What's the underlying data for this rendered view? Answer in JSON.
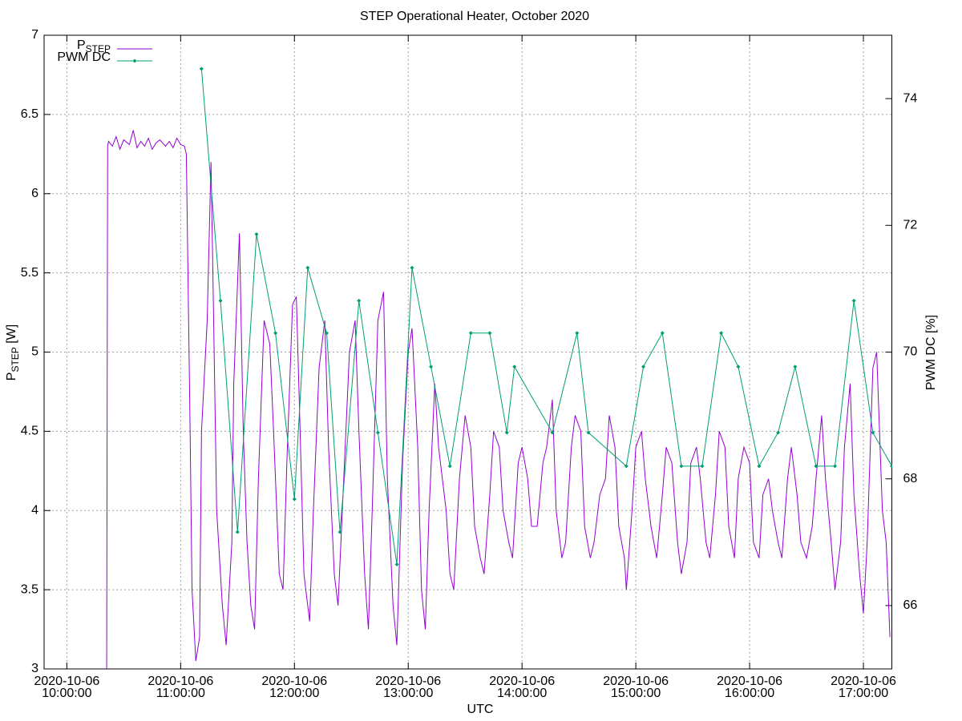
{
  "chart_data": {
    "type": "line",
    "title": "STEP Operational Heater, October 2020",
    "xlabel": "UTC",
    "ylabel": "PSTEP [W]",
    "y2label": "PWM DC [%]",
    "xlim": [
      "2020-10-06 09:48:00",
      "2020-10-06 17:15:00"
    ],
    "xticks": [
      "2020-10-06 10:00:00",
      "2020-10-06 11:00:00",
      "2020-10-06 12:00:00",
      "2020-10-06 13:00:00",
      "2020-10-06 14:00:00",
      "2020-10-06 15:00:00",
      "2020-10-06 16:00:00",
      "2020-10-06 17:00:00"
    ],
    "ylim": [
      3,
      7
    ],
    "yticks": [
      3,
      3.5,
      4,
      4.5,
      5,
      5.5,
      6,
      6.5,
      7
    ],
    "y2lim": [
      65,
      75
    ],
    "y2ticks": [
      66,
      68,
      70,
      72,
      74
    ],
    "grid": true,
    "legend": "top-left",
    "series": [
      {
        "name": "PSTEP",
        "color": "#9400d3",
        "markers": false,
        "x": [
          "2020-10-06 10:21:00",
          "2020-10-06 10:21:30",
          "2020-10-06 10:22:00",
          "2020-10-06 10:24:00",
          "2020-10-06 10:26:00",
          "2020-10-06 10:28:00",
          "2020-10-06 10:30:00",
          "2020-10-06 10:33:00",
          "2020-10-06 10:35:00",
          "2020-10-06 10:37:00",
          "2020-10-06 10:39:00",
          "2020-10-06 10:41:00",
          "2020-10-06 10:43:00",
          "2020-10-06 10:45:00",
          "2020-10-06 10:47:00",
          "2020-10-06 10:49:00",
          "2020-10-06 10:52:00",
          "2020-10-06 10:54:00",
          "2020-10-06 10:56:00",
          "2020-10-06 10:58:00",
          "2020-10-06 11:00:00",
          "2020-10-06 11:02:00",
          "2020-10-06 11:03:00",
          "2020-10-06 11:05:00",
          "2020-10-06 11:06:00",
          "2020-10-06 11:08:00",
          "2020-10-06 11:10:00",
          "2020-10-06 11:11:00",
          "2020-10-06 11:14:00",
          "2020-10-06 11:16:00",
          "2020-10-06 11:17:00",
          "2020-10-06 11:19:00",
          "2020-10-06 11:22:00",
          "2020-10-06 11:24:00",
          "2020-10-06 11:27:00",
          "2020-10-06 11:28:00",
          "2020-10-06 11:31:00",
          "2020-10-06 11:33:00",
          "2020-10-06 11:35:00",
          "2020-10-06 11:37:00",
          "2020-10-06 11:39:00",
          "2020-10-06 11:41:00",
          "2020-10-06 11:44:00",
          "2020-10-06 11:47:00",
          "2020-10-06 11:49:00",
          "2020-10-06 11:52:00",
          "2020-10-06 11:54:00",
          "2020-10-06 11:56:00",
          "2020-10-06 11:59:00",
          "2020-10-06 12:01:00",
          "2020-10-06 12:03:00",
          "2020-10-06 12:05:00",
          "2020-10-06 12:08:00",
          "2020-10-06 12:10:00",
          "2020-10-06 12:13:00",
          "2020-10-06 12:16:00",
          "2020-10-06 12:18:00",
          "2020-10-06 12:21:00",
          "2020-10-06 12:23:00",
          "2020-10-06 12:26:00",
          "2020-10-06 12:29:00",
          "2020-10-06 12:32:00",
          "2020-10-06 12:34:00",
          "2020-10-06 12:37:00",
          "2020-10-06 12:39:00",
          "2020-10-06 12:41:00",
          "2020-10-06 12:44:00",
          "2020-10-06 12:47:00",
          "2020-10-06 12:49:00",
          "2020-10-06 12:52:00",
          "2020-10-06 12:54:00",
          "2020-10-06 12:57:00",
          "2020-10-06 13:00:00",
          "2020-10-06 13:02:00",
          "2020-10-06 13:05:00",
          "2020-10-06 13:07:00",
          "2020-10-06 13:09:00",
          "2020-10-06 13:11:00",
          "2020-10-06 13:14:00",
          "2020-10-06 13:16:00",
          "2020-10-06 13:20:00",
          "2020-10-06 13:22:00",
          "2020-10-06 13:24:00",
          "2020-10-06 13:27:00",
          "2020-10-06 13:30:00",
          "2020-10-06 13:33:00",
          "2020-10-06 13:35:00",
          "2020-10-06 13:38:00",
          "2020-10-06 13:40:00",
          "2020-10-06 13:43:00",
          "2020-10-06 13:45:00",
          "2020-10-06 13:48:00",
          "2020-10-06 13:50:00",
          "2020-10-06 13:53:00",
          "2020-10-06 13:55:00",
          "2020-10-06 13:58:00",
          "2020-10-06 14:00:00",
          "2020-10-06 14:03:00",
          "2020-10-06 14:05:00",
          "2020-10-06 14:08:00",
          "2020-10-06 14:11:00",
          "2020-10-06 14:13:00",
          "2020-10-06 14:16:00",
          "2020-10-06 14:18:00",
          "2020-10-06 14:21:00",
          "2020-10-06 14:23:00",
          "2020-10-06 14:26:00",
          "2020-10-06 14:28:00",
          "2020-10-06 14:31:00",
          "2020-10-06 14:33:00",
          "2020-10-06 14:36:00",
          "2020-10-06 14:38:00",
          "2020-10-06 14:41:00",
          "2020-10-06 14:44:00",
          "2020-10-06 14:46:00",
          "2020-10-06 14:49:00",
          "2020-10-06 14:51:00",
          "2020-10-06 14:54:00",
          "2020-10-06 14:55:00",
          "2020-10-06 14:58:00",
          "2020-10-06 15:00:00",
          "2020-10-06 15:03:00",
          "2020-10-06 15:05:00",
          "2020-10-06 15:08:00",
          "2020-10-06 15:11:00",
          "2020-10-06 15:14:00",
          "2020-10-06 15:16:00",
          "2020-10-06 15:19:00",
          "2020-10-06 15:22:00",
          "2020-10-06 15:24:00",
          "2020-10-06 15:27:00",
          "2020-10-06 15:29:00",
          "2020-10-06 15:32:00",
          "2020-10-06 15:34:00",
          "2020-10-06 15:37:00",
          "2020-10-06 15:39:00",
          "2020-10-06 15:42:00",
          "2020-10-06 15:44:00",
          "2020-10-06 15:47:00",
          "2020-10-06 15:49:00",
          "2020-10-06 15:52:00",
          "2020-10-06 15:54:00",
          "2020-10-06 15:57:00",
          "2020-10-06 16:00:00",
          "2020-10-06 16:02:00",
          "2020-10-06 16:05:00",
          "2020-10-06 16:07:00",
          "2020-10-06 16:10:00",
          "2020-10-06 16:12:00",
          "2020-10-06 16:15:00",
          "2020-10-06 16:17:00",
          "2020-10-06 16:20:00",
          "2020-10-06 16:22:00",
          "2020-10-06 16:25:00",
          "2020-10-06 16:27:00",
          "2020-10-06 16:30:00",
          "2020-10-06 16:33:00",
          "2020-10-06 16:35:00",
          "2020-10-06 16:38:00",
          "2020-10-06 16:40:00",
          "2020-10-06 16:43:00",
          "2020-10-06 16:45:00",
          "2020-10-06 16:48:00",
          "2020-10-06 16:50:00",
          "2020-10-06 16:53:00",
          "2020-10-06 16:55:00",
          "2020-10-06 16:58:00",
          "2020-10-06 17:00:00",
          "2020-10-06 17:02:00",
          "2020-10-06 17:05:00",
          "2020-10-06 17:07:00",
          "2020-10-06 17:10:00",
          "2020-10-06 17:12:00",
          "2020-10-06 17:14:00"
        ],
        "values": [
          3.0,
          6.3,
          6.33,
          6.3,
          6.36,
          6.28,
          6.34,
          6.31,
          6.4,
          6.29,
          6.33,
          6.3,
          6.35,
          6.28,
          6.32,
          6.34,
          6.3,
          6.33,
          6.29,
          6.35,
          6.31,
          6.3,
          6.25,
          4.5,
          3.5,
          3.05,
          3.2,
          4.5,
          5.2,
          6.2,
          5.5,
          4.0,
          3.4,
          3.15,
          3.8,
          4.8,
          5.75,
          4.5,
          3.8,
          3.4,
          3.25,
          4.2,
          5.2,
          5.05,
          4.5,
          3.6,
          3.5,
          4.3,
          5.3,
          5.35,
          4.5,
          3.6,
          3.3,
          4.0,
          4.9,
          5.2,
          4.4,
          3.6,
          3.4,
          4.2,
          5.0,
          5.2,
          4.5,
          3.6,
          3.25,
          4.0,
          5.2,
          5.38,
          4.2,
          3.4,
          3.15,
          4.3,
          5.0,
          5.15,
          4.4,
          3.5,
          3.25,
          4.0,
          4.8,
          4.4,
          4.0,
          3.6,
          3.5,
          4.2,
          4.6,
          4.4,
          3.9,
          3.7,
          3.6,
          4.1,
          4.5,
          4.4,
          4.0,
          3.8,
          3.7,
          4.3,
          4.4,
          4.2,
          3.9,
          3.9,
          4.3,
          4.4,
          4.7,
          4.0,
          3.7,
          3.8,
          4.4,
          4.6,
          4.5,
          3.9,
          3.7,
          3.8,
          4.1,
          4.2,
          4.6,
          4.4,
          3.9,
          3.7,
          3.5,
          4.0,
          4.4,
          4.5,
          4.2,
          3.9,
          3.7,
          4.1,
          4.4,
          4.3,
          3.8,
          3.6,
          3.8,
          4.3,
          4.4,
          4.2,
          3.8,
          3.7,
          4.1,
          4.5,
          4.4,
          3.9,
          3.7,
          4.2,
          4.4,
          4.3,
          3.8,
          3.7,
          4.1,
          4.2,
          4.0,
          3.8,
          3.7,
          4.2,
          4.4,
          4.1,
          3.8,
          3.7,
          3.9,
          4.2,
          4.6,
          4.2,
          3.8,
          3.5,
          3.8,
          4.4,
          4.8,
          4.1,
          3.6,
          3.35,
          3.8,
          4.9,
          5.0,
          4.0,
          3.8,
          3.2
        ]
      },
      {
        "name": "PWM DC",
        "color": "#009e73",
        "markers": true,
        "axis": "y2",
        "x": [
          "2020-10-06 11:11:00",
          "2020-10-06 11:21:00",
          "2020-10-06 11:30:00",
          "2020-10-06 11:40:00",
          "2020-10-06 11:50:00",
          "2020-10-06 12:00:00",
          "2020-10-06 12:07:00",
          "2020-10-06 12:17:00",
          "2020-10-06 12:24:00",
          "2020-10-06 12:34:00",
          "2020-10-06 12:44:00",
          "2020-10-06 12:54:00",
          "2020-10-06 13:02:00",
          "2020-10-06 13:12:00",
          "2020-10-06 13:22:00",
          "2020-10-06 13:33:00",
          "2020-10-06 13:43:00",
          "2020-10-06 13:52:00",
          "2020-10-06 13:56:00",
          "2020-10-06 14:16:00",
          "2020-10-06 14:29:00",
          "2020-10-06 14:35:00",
          "2020-10-06 14:55:00",
          "2020-10-06 15:04:00",
          "2020-10-06 15:14:00",
          "2020-10-06 15:24:00",
          "2020-10-06 15:35:00",
          "2020-10-06 15:45:00",
          "2020-10-06 15:54:00",
          "2020-10-06 16:05:00",
          "2020-10-06 16:15:00",
          "2020-10-06 16:24:00",
          "2020-10-06 16:35:00",
          "2020-10-06 16:45:00",
          "2020-10-06 16:55:00",
          "2020-10-06 17:05:00",
          "2020-10-06 17:15:00"
        ],
        "values": [
          74.47,
          70.81,
          67.16,
          71.86,
          70.3,
          67.68,
          71.33,
          70.3,
          67.16,
          70.81,
          68.73,
          66.65,
          71.33,
          69.77,
          68.2,
          70.3,
          70.3,
          68.73,
          69.77,
          68.73,
          70.3,
          68.73,
          68.2,
          69.77,
          70.3,
          68.2,
          68.2,
          70.3,
          69.77,
          68.2,
          68.73,
          69.77,
          68.2,
          68.2,
          70.81,
          68.73,
          68.2
        ]
      }
    ]
  }
}
